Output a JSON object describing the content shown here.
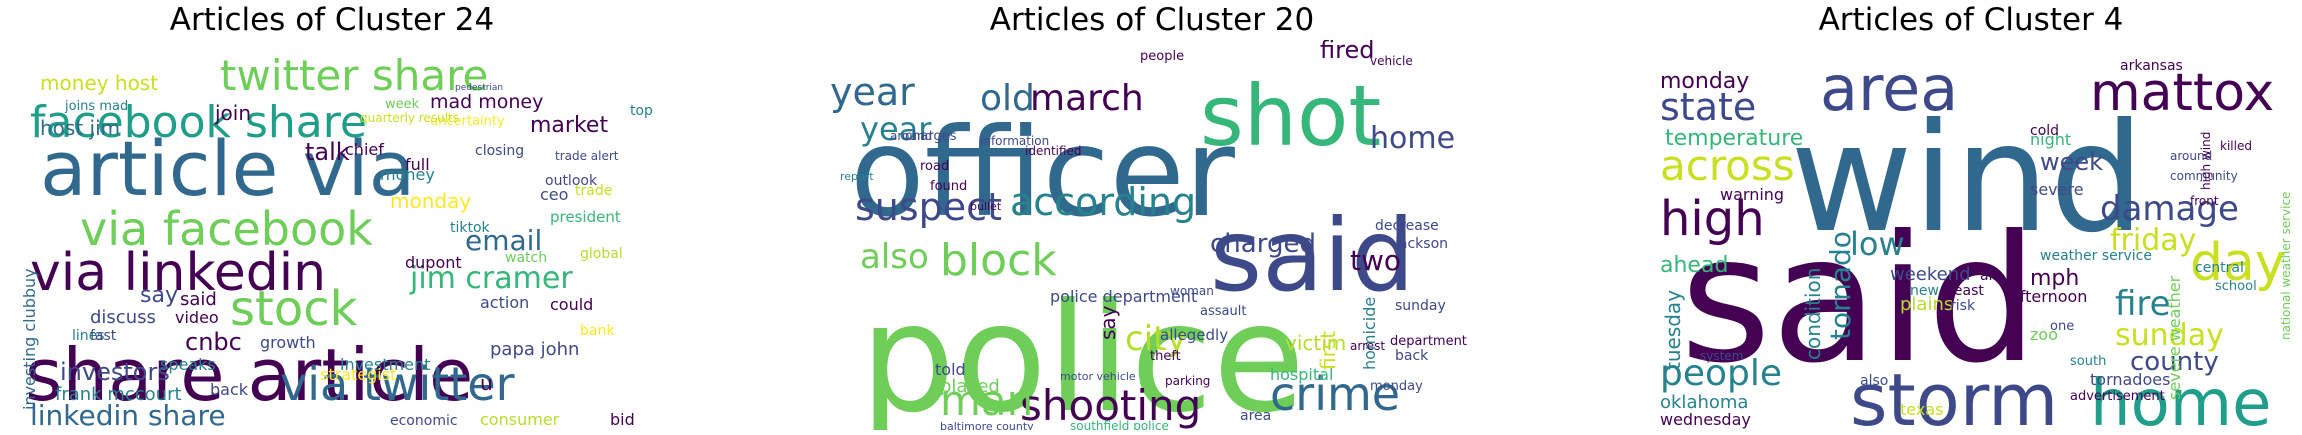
{
  "panels": [
    {
      "title": "Articles of Cluster 24",
      "words": [
        {
          "t": "share article",
          "c": "#440154"
        },
        {
          "t": "article via",
          "c": "#31688e"
        },
        {
          "t": "via linkedin",
          "c": "#440154"
        },
        {
          "t": "via facebook",
          "c": "#6ece58"
        },
        {
          "t": "facebook share",
          "c": "#1f9e89"
        },
        {
          "t": "twitter share",
          "c": "#6ece58"
        },
        {
          "t": "via twitter",
          "c": "#31688e"
        },
        {
          "t": "stock",
          "c": "#6ece58"
        },
        {
          "t": "linkedin share",
          "c": "#31688e"
        },
        {
          "t": "jim cramer",
          "c": "#35b779"
        },
        {
          "t": "email",
          "c": "#31688e"
        },
        {
          "t": "money host",
          "c": "#c8e020"
        },
        {
          "t": "mad money",
          "c": "#440154"
        },
        {
          "t": "host jim",
          "c": "#31688e"
        },
        {
          "t": "cnbc",
          "c": "#440154"
        },
        {
          "t": "investors",
          "c": "#3e4989"
        },
        {
          "t": "frank mccourt",
          "c": "#26828e"
        },
        {
          "t": "papa john",
          "c": "#3e4989"
        },
        {
          "t": "investment",
          "c": "#26828e"
        },
        {
          "t": "market",
          "c": "#440154"
        },
        {
          "t": "talk",
          "c": "#440154"
        },
        {
          "t": "monday",
          "c": "#fde725"
        },
        {
          "t": "ceo",
          "c": "#3e4989"
        },
        {
          "t": "join",
          "c": "#440154"
        },
        {
          "t": "joins mad",
          "c": "#26828e"
        },
        {
          "t": "say",
          "c": "#3e4989"
        },
        {
          "t": "said",
          "c": "#440154"
        },
        {
          "t": "discuss",
          "c": "#3e4989"
        },
        {
          "t": "video",
          "c": "#440154"
        },
        {
          "t": "dupont",
          "c": "#440154"
        },
        {
          "t": "president",
          "c": "#35b779"
        },
        {
          "t": "outlook",
          "c": "#3e4989"
        },
        {
          "t": "global",
          "c": "#b5de2b"
        },
        {
          "t": "growth",
          "c": "#3e4989"
        },
        {
          "t": "speaks",
          "c": "#26828e"
        },
        {
          "t": "economic",
          "c": "#3e4989"
        },
        {
          "t": "consumer",
          "c": "#b5de2b"
        },
        {
          "t": "bid",
          "c": "#440154"
        },
        {
          "t": "watch",
          "c": "#6ece58"
        },
        {
          "t": "trade",
          "c": "#c8e020"
        },
        {
          "t": "full",
          "c": "#440154"
        },
        {
          "t": "closing",
          "c": "#3e4989"
        },
        {
          "t": "lines",
          "c": "#26828e"
        },
        {
          "t": "fast",
          "c": "#3e4989"
        },
        {
          "t": "action",
          "c": "#3e4989"
        },
        {
          "t": "could",
          "c": "#440154"
        },
        {
          "t": "chief",
          "c": "#440154"
        },
        {
          "t": "top",
          "c": "#26828e"
        },
        {
          "t": "week",
          "c": "#6ece58"
        },
        {
          "t": "money",
          "c": "#26828e"
        },
        {
          "t": "investing clubbuy",
          "c": "#31688e"
        },
        {
          "t": "back",
          "c": "#3e4989"
        },
        {
          "t": "u",
          "c": "#440154"
        },
        {
          "t": "bank",
          "c": "#fde725"
        },
        {
          "t": "tiktok",
          "c": "#26828e"
        },
        {
          "t": "strategist",
          "c": "#fde725"
        },
        {
          "t": "uncertainty",
          "c": "#fde725"
        },
        {
          "t": "trade alert",
          "c": "#3e4989"
        },
        {
          "t": "quarterly results",
          "c": "#c8e020"
        },
        {
          "t": "pedestrian",
          "c": "#3e4989"
        }
      ]
    },
    {
      "title": "Articles of Cluster 20",
      "words": [
        {
          "t": "police",
          "c": "#6ece58"
        },
        {
          "t": "officer",
          "c": "#31688e"
        },
        {
          "t": "said",
          "c": "#3e4989"
        },
        {
          "t": "shot",
          "c": "#35b779"
        },
        {
          "t": "according",
          "c": "#26828e"
        },
        {
          "t": "suspect",
          "c": "#3e4989"
        },
        {
          "t": "block",
          "c": "#6ece58"
        },
        {
          "t": "shooting",
          "c": "#440154"
        },
        {
          "t": "crime",
          "c": "#31688e"
        },
        {
          "t": "march",
          "c": "#440154"
        },
        {
          "t": "old",
          "c": "#31688e"
        },
        {
          "t": "year",
          "c": "#31688e"
        },
        {
          "t": "year",
          "c": "#26828e"
        },
        {
          "t": "home",
          "c": "#3e4989"
        },
        {
          "t": "man",
          "c": "#6ece58"
        },
        {
          "t": "city",
          "c": "#b5de2b"
        },
        {
          "t": "also",
          "c": "#6ece58"
        },
        {
          "t": "charged",
          "c": "#3e4989"
        },
        {
          "t": "fired",
          "c": "#440154"
        },
        {
          "t": "two",
          "c": "#440154"
        },
        {
          "t": "first",
          "c": "#c8e020"
        },
        {
          "t": "victim",
          "c": "#b5de2b"
        },
        {
          "t": "say",
          "c": "#440154"
        },
        {
          "t": "hospital",
          "c": "#35b779"
        },
        {
          "t": "police department",
          "c": "#3e4989"
        },
        {
          "t": "told",
          "c": "#3e4989"
        },
        {
          "t": "placed",
          "c": "#6ece58"
        },
        {
          "t": "sunday",
          "c": "#3e4989"
        },
        {
          "t": "allegedly",
          "c": "#3e4989"
        },
        {
          "t": "homicide",
          "c": "#26828e"
        },
        {
          "t": "area",
          "c": "#3e4989"
        },
        {
          "t": "vehicle",
          "c": "#440154"
        },
        {
          "t": "decrease",
          "c": "#3e4989"
        },
        {
          "t": "jackson",
          "c": "#3e4989"
        },
        {
          "t": "people",
          "c": "#440154"
        },
        {
          "t": "woman",
          "c": "#3e4989"
        },
        {
          "t": "assault",
          "c": "#3e4989"
        },
        {
          "t": "theft",
          "c": "#440154"
        },
        {
          "t": "department",
          "c": "#440154"
        },
        {
          "t": "report",
          "c": "#26828e"
        },
        {
          "t": "found",
          "c": "#440154"
        },
        {
          "t": "road",
          "c": "#440154"
        },
        {
          "t": "charges",
          "c": "#3e4989"
        },
        {
          "t": "information",
          "c": "#3e4989"
        },
        {
          "t": "identified",
          "c": "#440154"
        },
        {
          "t": "baltimore county",
          "c": "#3e4989"
        },
        {
          "t": "southfield police",
          "c": "#35b779"
        },
        {
          "t": "bullet",
          "c": "#440154"
        },
        {
          "t": "arrest",
          "c": "#440154"
        },
        {
          "t": "back",
          "c": "#3e4989"
        },
        {
          "t": "monday",
          "c": "#3e4989"
        },
        {
          "t": "around",
          "c": "#3e4989"
        },
        {
          "t": "motor vehicle",
          "c": "#3e4989"
        },
        {
          "t": "parking",
          "c": "#440154"
        }
      ]
    },
    {
      "title": "Articles of Cluster 4",
      "words": [
        {
          "t": "said",
          "c": "#440154"
        },
        {
          "t": "wind",
          "c": "#31688e"
        },
        {
          "t": "storm",
          "c": "#3e4989"
        },
        {
          "t": "area",
          "c": "#3e4989"
        },
        {
          "t": "home",
          "c": "#1f9e89"
        },
        {
          "t": "mattox",
          "c": "#440154"
        },
        {
          "t": "high",
          "c": "#440154"
        },
        {
          "t": "across",
          "c": "#c8e020"
        },
        {
          "t": "state",
          "c": "#3e4989"
        },
        {
          "t": "day",
          "c": "#c8e020"
        },
        {
          "t": "damage",
          "c": "#3e4989"
        },
        {
          "t": "friday",
          "c": "#c8e020"
        },
        {
          "t": "fire",
          "c": "#26828e"
        },
        {
          "t": "sunday",
          "c": "#c8e020"
        },
        {
          "t": "county",
          "c": "#3e4989"
        },
        {
          "t": "people",
          "c": "#26828e"
        },
        {
          "t": "tornado",
          "c": "#26828e"
        },
        {
          "t": "low",
          "c": "#26828e"
        },
        {
          "t": "temperature",
          "c": "#35b779"
        },
        {
          "t": "monday",
          "c": "#440154"
        },
        {
          "t": "ahead",
          "c": "#35b779"
        },
        {
          "t": "week",
          "c": "#3e4989"
        },
        {
          "t": "mph",
          "c": "#440154"
        },
        {
          "t": "night",
          "c": "#35b779"
        },
        {
          "t": "tuesday",
          "c": "#26828e"
        },
        {
          "t": "condition",
          "c": "#26828e"
        },
        {
          "t": "weekend",
          "c": "#3e4989"
        },
        {
          "t": "afternoon",
          "c": "#440154"
        },
        {
          "t": "plains",
          "c": "#b5de2b"
        },
        {
          "t": "tornadoes",
          "c": "#3e4989"
        },
        {
          "t": "oklahoma",
          "c": "#26828e"
        },
        {
          "t": "wednesday",
          "c": "#440154"
        },
        {
          "t": "also",
          "c": "#3e4989"
        },
        {
          "t": "warning",
          "c": "#440154"
        },
        {
          "t": "severe weather",
          "c": "#6ece58"
        },
        {
          "t": "zoo",
          "c": "#6ece58"
        },
        {
          "t": "central",
          "c": "#26828e"
        },
        {
          "t": "south",
          "c": "#26828e"
        },
        {
          "t": "severe",
          "c": "#3e4989"
        },
        {
          "t": "arkansas",
          "c": "#440154"
        },
        {
          "t": "cold",
          "c": "#440154"
        },
        {
          "t": "texas",
          "c": "#c8e020"
        },
        {
          "t": "weather service",
          "c": "#26828e"
        },
        {
          "t": "new",
          "c": "#26828e"
        },
        {
          "t": "risk",
          "c": "#3e4989"
        },
        {
          "t": "least",
          "c": "#440154"
        },
        {
          "t": "killed",
          "c": "#440154"
        },
        {
          "t": "school",
          "c": "#26828e"
        },
        {
          "t": "air",
          "c": "#440154"
        },
        {
          "t": "community",
          "c": "#3e4989"
        },
        {
          "t": "around",
          "c": "#3e4989"
        },
        {
          "t": "one",
          "c": "#3e4989"
        },
        {
          "t": "system",
          "c": "#3e4989"
        },
        {
          "t": "national weather service",
          "c": "#6ece58"
        },
        {
          "t": "advertisement",
          "c": "#440154"
        },
        {
          "t": "front",
          "c": "#440154"
        },
        {
          "t": "high wind",
          "c": "#440154"
        }
      ]
    }
  ]
}
